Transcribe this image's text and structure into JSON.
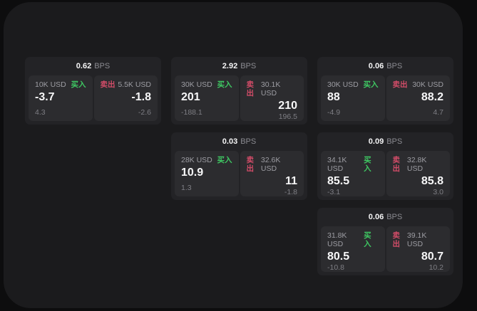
{
  "labels": {
    "bps": "BPS",
    "buy": "买入",
    "sell": "卖出"
  },
  "colors": {
    "buy_green": "#3fc963",
    "sell_red": "#d24c68",
    "page_bg": "#0d0d0e",
    "surface_bg": "#1b1b1d",
    "card_bg": "#232326",
    "panel_bg": "#2c2c2f"
  },
  "cards": [
    {
      "bps": "0.62",
      "buy": {
        "amount": "10K USD",
        "value": "-3.7",
        "sub": "4.3"
      },
      "sell": {
        "amount": "5.5K USD",
        "value": "-1.8",
        "sub": "-2.6"
      }
    },
    {
      "bps": "2.92",
      "buy": {
        "amount": "30K USD",
        "value": "201",
        "sub": "-188.1"
      },
      "sell": {
        "amount": "30.1K USD",
        "value": "210",
        "sub": "196.5"
      }
    },
    {
      "bps": "0.06",
      "buy": {
        "amount": "30K USD",
        "value": "88",
        "sub": "-4.9"
      },
      "sell": {
        "amount": "30K USD",
        "value": "88.2",
        "sub": "4.7"
      }
    },
    {
      "bps": "0.03",
      "buy": {
        "amount": "28K USD",
        "value": "10.9",
        "sub": "1.3"
      },
      "sell": {
        "amount": "32.6K USD",
        "value": "11",
        "sub": "-1.8"
      }
    },
    {
      "bps": "0.09",
      "buy": {
        "amount": "34.1K USD",
        "value": "85.5",
        "sub": "-3.1"
      },
      "sell": {
        "amount": "32.8K USD",
        "value": "85.8",
        "sub": "3.0"
      }
    },
    {
      "bps": "0.06",
      "buy": {
        "amount": "31.8K USD",
        "value": "80.5",
        "sub": "-10.8"
      },
      "sell": {
        "amount": "39.1K USD",
        "value": "80.7",
        "sub": "10.2"
      }
    }
  ]
}
